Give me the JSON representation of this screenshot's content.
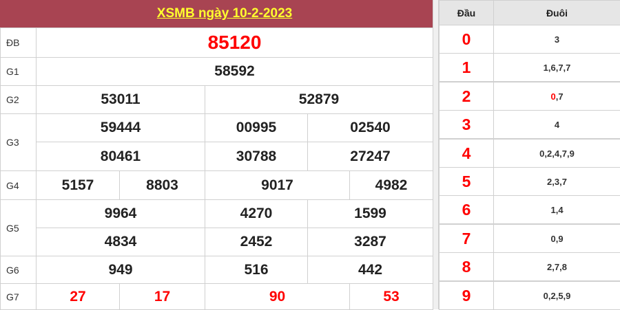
{
  "title": "XSMB ngày 10-2-2023",
  "prizes": [
    {
      "label": "ĐB",
      "rows": [
        [
          "85120"
        ]
      ]
    },
    {
      "label": "G1",
      "rows": [
        [
          "58592"
        ]
      ]
    },
    {
      "label": "G2",
      "rows": [
        [
          "53011",
          "52879"
        ]
      ]
    },
    {
      "label": "G3",
      "rows": [
        [
          "59444",
          "00995",
          "02540"
        ],
        [
          "80461",
          "30788",
          "27247"
        ]
      ]
    },
    {
      "label": "G4",
      "rows": [
        [
          "5157",
          "8803",
          "9017",
          "4982"
        ]
      ]
    },
    {
      "label": "G5",
      "rows": [
        [
          "9964",
          "4270",
          "1599"
        ],
        [
          "4834",
          "2452",
          "3287"
        ]
      ]
    },
    {
      "label": "G6",
      "rows": [
        [
          "949",
          "516",
          "442"
        ]
      ]
    },
    {
      "label": "G7",
      "rows": [
        [
          "27",
          "17",
          "90",
          "53"
        ]
      ]
    }
  ],
  "loto": {
    "head_label": "Đầu",
    "tail_label": "Đuôi",
    "rows": [
      {
        "head": "0",
        "tails": [
          "3"
        ]
      },
      {
        "head": "1",
        "tails": [
          "1",
          "6",
          "7",
          "7"
        ]
      },
      {
        "head": "2",
        "tails": [
          "0",
          "7"
        ],
        "highlight": "0"
      },
      {
        "head": "3",
        "tails": [
          "4"
        ]
      },
      {
        "head": "4",
        "tails": [
          "0",
          "2",
          "4",
          "7",
          "9"
        ]
      },
      {
        "head": "5",
        "tails": [
          "2",
          "3",
          "7"
        ]
      },
      {
        "head": "6",
        "tails": [
          "1",
          "4"
        ]
      },
      {
        "head": "7",
        "tails": [
          "0",
          "9"
        ]
      },
      {
        "head": "8",
        "tails": [
          "2",
          "7",
          "8"
        ]
      },
      {
        "head": "9",
        "tails": [
          "0",
          "2",
          "5",
          "9"
        ]
      }
    ]
  },
  "colors": {
    "header_bg": "#a84452",
    "title_text": "#ffff2e",
    "highlight": "#ff0000"
  }
}
